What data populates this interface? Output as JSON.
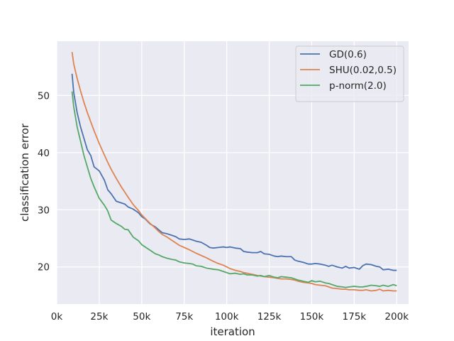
{
  "chart_data": {
    "type": "line",
    "title": "",
    "xlabel": "iteration",
    "ylabel": "classification error",
    "xlim": [
      0,
      207000
    ],
    "ylim": [
      13.5,
      59.5
    ],
    "xticks": [
      0,
      25000,
      50000,
      75000,
      100000,
      125000,
      150000,
      175000,
      200000
    ],
    "xtick_labels": [
      "0k",
      "25k",
      "50k",
      "75k",
      "100k",
      "125k",
      "150k",
      "175k",
      "200k"
    ],
    "yticks": [
      20,
      30,
      40,
      50
    ],
    "ytick_labels": [
      "20",
      "30",
      "40",
      "50"
    ],
    "grid": true,
    "background": "#eaeaf2",
    "grid_color": "#ffffff",
    "legend_position": "top-right",
    "series": [
      {
        "name": "GD(0.6)",
        "color": "#4c72b0",
        "x": [
          9000,
          10000,
          12000,
          14000,
          16000,
          18000,
          20000,
          22000,
          25000,
          28000,
          30000,
          32000,
          35000,
          38000,
          40000,
          42000,
          45000,
          48000,
          50000,
          52000,
          55000,
          58000,
          60000,
          62000,
          65000,
          68000,
          70000,
          72000,
          75000,
          78000,
          80000,
          82000,
          85000,
          88000,
          90000,
          92000,
          95000,
          98000,
          100000,
          102000,
          105000,
          108000,
          110000,
          112000,
          115000,
          118000,
          120000,
          122000,
          125000,
          128000,
          130000,
          132000,
          135000,
          138000,
          140000,
          142000,
          145000,
          148000,
          150000,
          152000,
          155000,
          158000,
          160000,
          162000,
          165000,
          168000,
          170000,
          172000,
          175000,
          178000,
          180000,
          182000,
          185000,
          188000,
          190000,
          192000,
          195000,
          198000,
          200000
        ],
        "values": [
          53.8,
          50.5,
          47.0,
          44.5,
          42.5,
          40.5,
          39.5,
          37.5,
          36.8,
          35.2,
          33.5,
          32.8,
          31.5,
          31.2,
          31.0,
          30.5,
          30.1,
          29.5,
          28.8,
          28.4,
          27.5,
          27.0,
          26.5,
          26.0,
          25.8,
          25.5,
          25.3,
          24.9,
          24.8,
          24.9,
          24.7,
          24.5,
          24.3,
          23.8,
          23.4,
          23.3,
          23.4,
          23.5,
          23.4,
          23.5,
          23.3,
          23.2,
          22.7,
          22.6,
          22.5,
          22.5,
          22.7,
          22.3,
          22.2,
          21.9,
          21.8,
          21.9,
          21.8,
          21.8,
          21.2,
          21.0,
          20.8,
          20.5,
          20.5,
          20.6,
          20.5,
          20.3,
          20.1,
          20.3,
          20.0,
          19.8,
          20.1,
          19.8,
          19.9,
          19.6,
          20.2,
          20.5,
          20.4,
          20.1,
          20.0,
          19.5,
          19.6,
          19.4,
          19.4
        ]
      },
      {
        "name": "SHU(0.02,0.5)",
        "color": "#dd8452",
        "x": [
          9000,
          10000,
          12000,
          14000,
          16000,
          18000,
          20000,
          22000,
          25000,
          28000,
          30000,
          32000,
          35000,
          38000,
          40000,
          42000,
          45000,
          48000,
          50000,
          52000,
          55000,
          58000,
          60000,
          62000,
          65000,
          68000,
          70000,
          72000,
          75000,
          78000,
          80000,
          82000,
          85000,
          88000,
          90000,
          92000,
          95000,
          98000,
          100000,
          102000,
          105000,
          108000,
          110000,
          112000,
          115000,
          118000,
          120000,
          122000,
          125000,
          128000,
          130000,
          132000,
          135000,
          138000,
          140000,
          142000,
          145000,
          148000,
          150000,
          152000,
          155000,
          158000,
          160000,
          162000,
          165000,
          168000,
          170000,
          172000,
          175000,
          178000,
          180000,
          182000,
          185000,
          188000,
          190000,
          192000,
          195000,
          198000,
          200000
        ],
        "values": [
          57.6,
          55.5,
          53.0,
          50.8,
          48.8,
          47.0,
          45.4,
          43.8,
          41.6,
          39.6,
          38.3,
          37.1,
          35.5,
          34.0,
          33.1,
          32.2,
          30.9,
          29.9,
          29.1,
          28.5,
          27.6,
          26.8,
          26.2,
          25.7,
          25.2,
          24.6,
          24.2,
          23.8,
          23.4,
          23.0,
          22.7,
          22.4,
          22.0,
          21.6,
          21.3,
          21.0,
          20.6,
          20.3,
          20.0,
          19.7,
          19.4,
          19.2,
          19.0,
          18.9,
          18.7,
          18.5,
          18.4,
          18.3,
          18.2,
          18.1,
          18.0,
          17.9,
          17.9,
          17.8,
          17.7,
          17.5,
          17.3,
          17.2,
          17.1,
          16.9,
          16.8,
          16.7,
          16.5,
          16.3,
          16.2,
          16.1,
          16.1,
          16.0,
          16.0,
          15.9,
          15.9,
          16.0,
          15.8,
          15.9,
          16.1,
          15.8,
          15.9,
          15.8,
          15.8
        ]
      },
      {
        "name": "p-norm(2.0)",
        "color": "#55a868",
        "x": [
          9000,
          10000,
          12000,
          14000,
          16000,
          18000,
          20000,
          22000,
          25000,
          28000,
          30000,
          32000,
          35000,
          38000,
          40000,
          42000,
          45000,
          48000,
          50000,
          52000,
          55000,
          58000,
          60000,
          62000,
          65000,
          68000,
          70000,
          72000,
          75000,
          78000,
          80000,
          82000,
          85000,
          88000,
          90000,
          92000,
          95000,
          98000,
          100000,
          102000,
          105000,
          108000,
          110000,
          112000,
          115000,
          118000,
          120000,
          122000,
          125000,
          128000,
          130000,
          132000,
          135000,
          138000,
          140000,
          142000,
          145000,
          148000,
          150000,
          152000,
          155000,
          158000,
          160000,
          162000,
          165000,
          168000,
          170000,
          172000,
          175000,
          178000,
          180000,
          182000,
          185000,
          188000,
          190000,
          192000,
          195000,
          198000,
          200000
        ],
        "values": [
          50.7,
          48.0,
          44.5,
          42.0,
          39.5,
          37.5,
          35.5,
          34.0,
          32.0,
          30.8,
          29.8,
          28.2,
          27.6,
          27.1,
          26.6,
          26.5,
          25.2,
          24.6,
          23.9,
          23.5,
          22.9,
          22.3,
          22.1,
          21.8,
          21.5,
          21.3,
          21.2,
          20.9,
          20.7,
          20.6,
          20.5,
          20.2,
          20.1,
          19.8,
          19.7,
          19.6,
          19.5,
          19.2,
          19.0,
          18.8,
          18.9,
          18.7,
          18.8,
          18.6,
          18.6,
          18.4,
          18.5,
          18.3,
          18.5,
          18.2,
          18.1,
          18.3,
          18.2,
          18.1,
          17.9,
          17.7,
          17.5,
          17.3,
          17.6,
          17.4,
          17.5,
          17.2,
          17.1,
          16.9,
          16.6,
          16.5,
          16.4,
          16.5,
          16.6,
          16.5,
          16.5,
          16.6,
          16.8,
          16.7,
          16.6,
          16.8,
          16.6,
          16.9,
          16.7
        ]
      }
    ]
  }
}
